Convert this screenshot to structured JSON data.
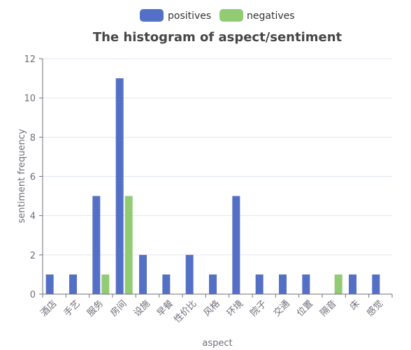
{
  "chart_data": {
    "type": "bar",
    "title": "The histogram of aspect/sentiment",
    "xlabel": "aspect",
    "ylabel": "sentiment frequency",
    "ylim": [
      0,
      12
    ],
    "yticks": [
      0,
      2,
      4,
      6,
      8,
      10,
      12
    ],
    "categories": [
      "酒店",
      "手艺",
      "服务",
      "房间",
      "设施",
      "早餐",
      "性价比",
      "风格",
      "环境",
      "院子",
      "交通",
      "位置",
      "隔音",
      "床",
      "感觉"
    ],
    "series": [
      {
        "name": "positives",
        "color": "#5470c6",
        "values": [
          1,
          1,
          5,
          11,
          2,
          1,
          2,
          1,
          5,
          1,
          1,
          1,
          0,
          1,
          1
        ]
      },
      {
        "name": "negatives",
        "color": "#91cc75",
        "values": [
          0,
          0,
          1,
          5,
          0,
          0,
          0,
          0,
          0,
          0,
          0,
          0,
          1,
          0,
          0
        ]
      }
    ],
    "legend_position": "top-center",
    "grid": true
  }
}
